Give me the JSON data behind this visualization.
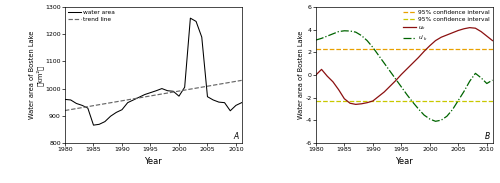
{
  "panel_A": {
    "xlabel": "Year",
    "label_A": "A",
    "xlim": [
      1980,
      2011
    ],
    "ylim": [
      800,
      1300
    ],
    "yticks": [
      800,
      900,
      1000,
      1100,
      1200,
      1300
    ],
    "xticks": [
      1980,
      1985,
      1990,
      1995,
      2000,
      2005,
      2010
    ],
    "water_area_color": "#000000",
    "trend_color": "#666666",
    "legend_water": "water area",
    "legend_trend": "trend line"
  },
  "panel_B": {
    "xlabel": "Year",
    "label_B": "B",
    "xlim": [
      1980,
      2011
    ],
    "ylim": [
      -6,
      6
    ],
    "yticks": [
      -6,
      -4,
      -2,
      0,
      2,
      4,
      6
    ],
    "xticks": [
      1980,
      1985,
      1990,
      1995,
      2000,
      2005,
      2010
    ],
    "uk_color": "#8b1010",
    "uk2_color": "#006400",
    "conf_upper_color": "#e8a000",
    "conf_lower_color": "#c8c800",
    "conf_upper_val": 2.31,
    "conf_lower_val": -2.31,
    "legend_conf1": "95% confidence interval",
    "legend_conf2": "95% confidence interval",
    "legend_uk": "u_k",
    "legend_uk2": "u_k"
  }
}
